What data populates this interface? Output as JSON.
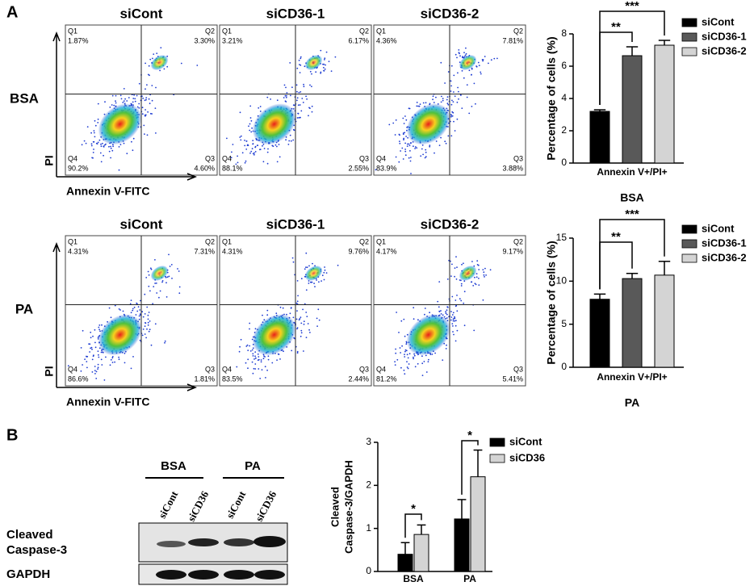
{
  "panel_labels": [
    "A",
    "B"
  ],
  "flow": {
    "x_axis_label": "Annexin V-FITC",
    "y_axis_label": "PI",
    "rows": [
      {
        "label": "BSA",
        "plots": [
          {
            "title": "siCont",
            "quadrants": [
              [
                "Q1",
                "1.87%"
              ],
              [
                "Q2",
                "3.30%"
              ],
              [
                "Q3",
                "4.60%"
              ],
              [
                "Q4",
                "90.2%"
              ]
            ]
          },
          {
            "title": "siCD36-1",
            "quadrants": [
              [
                "Q1",
                "3.21%"
              ],
              [
                "Q2",
                "6.17%"
              ],
              [
                "Q3",
                "2.55%"
              ],
              [
                "Q4",
                "88.1%"
              ]
            ]
          },
          {
            "title": "siCD36-2",
            "quadrants": [
              [
                "Q1",
                "4.36%"
              ],
              [
                "Q2",
                "7.81%"
              ],
              [
                "Q3",
                "3.88%"
              ],
              [
                "Q4",
                "83.9%"
              ]
            ]
          }
        ]
      },
      {
        "label": "PA",
        "plots": [
          {
            "title": "siCont",
            "quadrants": [
              [
                "Q1",
                "4.31%"
              ],
              [
                "Q2",
                "7.31%"
              ],
              [
                "Q3",
                "1.81%"
              ],
              [
                "Q4",
                "86.6%"
              ]
            ]
          },
          {
            "title": "siCD36-1",
            "quadrants": [
              [
                "Q1",
                "4.31%"
              ],
              [
                "Q2",
                "9.76%"
              ],
              [
                "Q3",
                "2.44%"
              ],
              [
                "Q4",
                "83.5%"
              ]
            ]
          },
          {
            "title": "siCD36-2",
            "quadrants": [
              [
                "Q1",
                "4.17%"
              ],
              [
                "Q2",
                "9.17%"
              ],
              [
                "Q3",
                "5.41%"
              ],
              [
                "Q4",
                "81.2%"
              ]
            ]
          }
        ]
      }
    ]
  },
  "western": {
    "groups": [
      "BSA",
      "PA"
    ],
    "lanes": [
      "siCont",
      "siCD36",
      "siCont",
      "siCD36"
    ],
    "rows": [
      [
        "Cleaved",
        "Caspase-3"
      ],
      [
        "GAPDH"
      ]
    ]
  },
  "chart_data": [
    {
      "type": "bar",
      "ylabel": "Percentage of cells (%)",
      "xlabel": "BSA",
      "categories": [
        "Annexin V+/PI+"
      ],
      "series": [
        {
          "name": "siCont",
          "color": "#000000",
          "values": [
            3.2
          ],
          "errors": [
            0.1
          ]
        },
        {
          "name": "siCD36-1",
          "color": "#595959",
          "values": [
            6.65
          ],
          "errors": [
            0.55
          ]
        },
        {
          "name": "siCD36-2",
          "color": "#d4d4d4",
          "values": [
            7.3
          ],
          "errors": [
            0.3
          ]
        }
      ],
      "ylim": [
        0,
        8
      ],
      "yticks": [
        0,
        2,
        4,
        6,
        8
      ],
      "annotations": [
        "**",
        "***"
      ]
    },
    {
      "type": "bar",
      "ylabel": "Percentage of cells (%)",
      "xlabel": "PA",
      "categories": [
        "Annexin V+/PI+"
      ],
      "series": [
        {
          "name": "siCont",
          "color": "#000000",
          "values": [
            7.9
          ],
          "errors": [
            0.6
          ]
        },
        {
          "name": "siCD36-1",
          "color": "#595959",
          "values": [
            10.3
          ],
          "errors": [
            0.6
          ]
        },
        {
          "name": "siCD36-2",
          "color": "#d4d4d4",
          "values": [
            10.7
          ],
          "errors": [
            1.6
          ]
        }
      ],
      "ylim": [
        0,
        15
      ],
      "yticks": [
        0,
        5,
        10,
        15
      ],
      "annotations": [
        "**",
        "***"
      ]
    },
    {
      "type": "bar",
      "ylabel": [
        "Cleaved",
        "Caspase-3/GAPDH"
      ],
      "categories": [
        "BSA",
        "PA"
      ],
      "series": [
        {
          "name": "siCont",
          "color": "#000000",
          "values": [
            0.4,
            1.22
          ],
          "errors": [
            0.27,
            0.45
          ]
        },
        {
          "name": "siCD36",
          "color": "#d4d4d4",
          "values": [
            0.86,
            2.2
          ],
          "errors": [
            0.22,
            0.62
          ]
        }
      ],
      "ylim": [
        0,
        3
      ],
      "yticks": [
        0,
        1,
        2,
        3
      ],
      "annotations": [
        "*",
        "*"
      ]
    }
  ]
}
